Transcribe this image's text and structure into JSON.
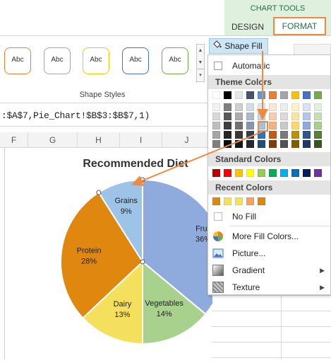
{
  "ribbon": {
    "context_tab_group": "CHART TOOLS",
    "tabs": [
      {
        "label": "DESIGN",
        "active": false
      },
      {
        "label": "FORMAT",
        "active": true
      }
    ],
    "style_gallery": {
      "items": [
        {
          "label": "Abc",
          "color": "#ed7d31"
        },
        {
          "label": "Abc",
          "color": "#a5a5a5"
        },
        {
          "label": "Abc",
          "color": "#ffc000"
        },
        {
          "label": "Abc",
          "color": "#4472c4"
        },
        {
          "label": "Abc",
          "color": "#70ad47"
        }
      ],
      "group_label": "Shape Styles"
    },
    "shape_fill_label": "Shape Fill"
  },
  "formula_bar": {
    "text": ":$A$7,Pie_Chart!$B$3:$B$7,1)"
  },
  "columns": [
    "F",
    "G",
    "H",
    "I",
    "J"
  ],
  "chart_data": {
    "type": "pie",
    "title": "Recommended Diet",
    "slices": [
      {
        "name": "Fruit",
        "value": 36,
        "label": "36%",
        "color": "#8faadc"
      },
      {
        "name": "Vegetables",
        "value": 14,
        "label": "14%",
        "color": "#a9d18e"
      },
      {
        "name": "Dairy",
        "value": 13,
        "label": "13%",
        "color": "#f5e05e"
      },
      {
        "name": "Protein",
        "value": 28,
        "label": "28%",
        "color": "#e0870f"
      },
      {
        "name": "Grains",
        "value": 9,
        "label": "9%",
        "color": "#9dc3e6"
      }
    ]
  },
  "fill_menu": {
    "automatic_label": "Automatic",
    "theme_colors_header": "Theme Colors",
    "theme_top_row": [
      "#ffffff",
      "#000000",
      "#e7e6e6",
      "#44546a",
      "#5b9bd5",
      "#ed7d31",
      "#a5a5a5",
      "#ffc000",
      "#4472c4",
      "#70ad47"
    ],
    "theme_shades": [
      [
        "#f2f2f2",
        "#7f7f7f",
        "#d0cece",
        "#d6dce4",
        "#deebf6",
        "#fbe5d5",
        "#ededed",
        "#fff2cc",
        "#d9e2f3",
        "#e2efd9"
      ],
      [
        "#d8d8d8",
        "#595959",
        "#aeabab",
        "#adb9ca",
        "#bdd7ee",
        "#f7cbac",
        "#dbdbdb",
        "#fee599",
        "#b4c6e7",
        "#c5e0b3"
      ],
      [
        "#bfbfbf",
        "#3f3f3f",
        "#757070",
        "#8496b0",
        "#9cc3e5",
        "#f4b183",
        "#c9c9c9",
        "#ffd965",
        "#8eaadb",
        "#a8d08d"
      ],
      [
        "#a5a5a5",
        "#262626",
        "#3a3838",
        "#323f4f",
        "#2e75b5",
        "#c55a11",
        "#7b7b7b",
        "#bf9000",
        "#2f5496",
        "#538135"
      ],
      [
        "#7f7f7f",
        "#0c0c0c",
        "#171616",
        "#222a35",
        "#1e4e79",
        "#833c0b",
        "#525252",
        "#7f6000",
        "#1f3864",
        "#375623"
      ]
    ],
    "standard_colors_header": "Standard Colors",
    "standard_colors": [
      "#c00000",
      "#ff0000",
      "#ffc000",
      "#ffff00",
      "#92d050",
      "#00b050",
      "#00b0f0",
      "#0070c0",
      "#002060",
      "#7030a0"
    ],
    "recent_colors_header": "Recent Colors",
    "recent_colors": [
      "#e0870f",
      "#f5e05e",
      "#f5e05e",
      "#f4a460",
      "#e0870f"
    ],
    "no_fill_label": "No Fill",
    "items": [
      {
        "label": "More Fill Colors...",
        "icon": "palette-icon",
        "submenu": false
      },
      {
        "label": "Picture...",
        "icon": "picture-icon",
        "submenu": false
      },
      {
        "label": "Gradient",
        "icon": "gradient-icon",
        "submenu": true
      },
      {
        "label": "Texture",
        "icon": "texture-icon",
        "submenu": true
      }
    ]
  },
  "annotation": {
    "arrow_color": "#f0883e",
    "highlight_color": "#f0883e"
  }
}
